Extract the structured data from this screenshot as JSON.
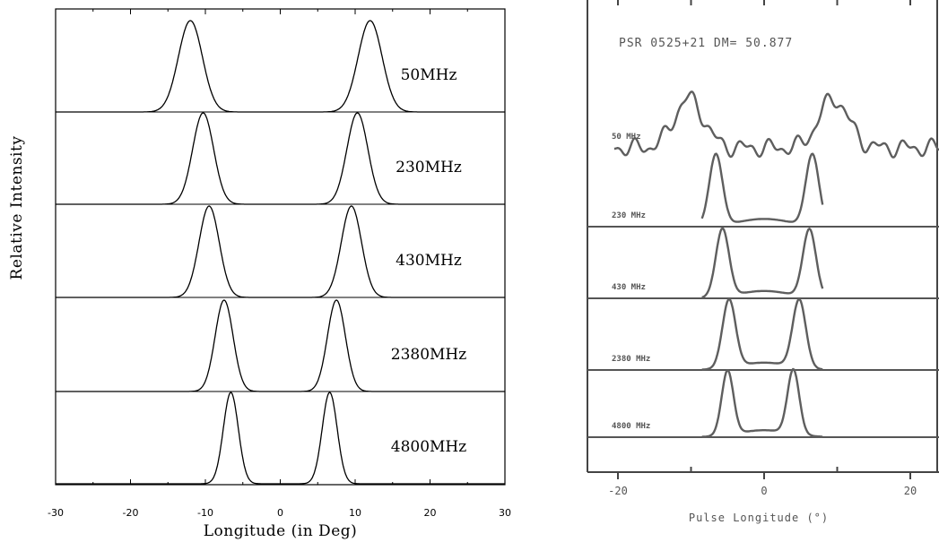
{
  "chart_data": [
    {
      "type": "line",
      "title": "",
      "xlabel": "Longitude (in Deg)",
      "ylabel": "Relative Intensity",
      "xlim": [
        -30,
        30
      ],
      "xticks": [
        "-30",
        "-20",
        "-10",
        "0",
        "10",
        "20",
        "30"
      ],
      "stacked": true,
      "series": [
        {
          "name": "50MHz",
          "peaks": [
            -12.0,
            12.0
          ],
          "width_deg": 1.6
        },
        {
          "name": "230MHz",
          "peaks": [
            -10.3,
            10.3
          ],
          "width_deg": 1.4
        },
        {
          "name": "430MHz",
          "peaks": [
            -9.5,
            9.5
          ],
          "width_deg": 1.35
        },
        {
          "name": "2380MHz",
          "peaks": [
            -7.5,
            7.5
          ],
          "width_deg": 1.2
        },
        {
          "name": "4800MHz",
          "peaks": [
            -6.6,
            6.6
          ],
          "width_deg": 1.0
        }
      ]
    },
    {
      "type": "line",
      "title": "PSR 0525+21    DM= 50.877",
      "xlabel": "Pulse Longitude (°)",
      "ylabel": "",
      "xlim": [
        -20,
        20
      ],
      "xticks": [
        "-20",
        "0",
        "20"
      ],
      "stacked": true,
      "series": [
        {
          "name": "50 MHz",
          "peaks": [
            -10.3,
            9.5
          ]
        },
        {
          "name": "230 MHz",
          "peaks": [
            -6.6,
            6.6
          ]
        },
        {
          "name": "430 MHz",
          "peaks": [
            -5.7,
            6.2
          ]
        },
        {
          "name": "2380 MHz",
          "peaks": [
            -4.8,
            4.8
          ]
        },
        {
          "name": "4800 MHz",
          "peaks": [
            -5.0,
            4.0
          ]
        }
      ]
    }
  ]
}
